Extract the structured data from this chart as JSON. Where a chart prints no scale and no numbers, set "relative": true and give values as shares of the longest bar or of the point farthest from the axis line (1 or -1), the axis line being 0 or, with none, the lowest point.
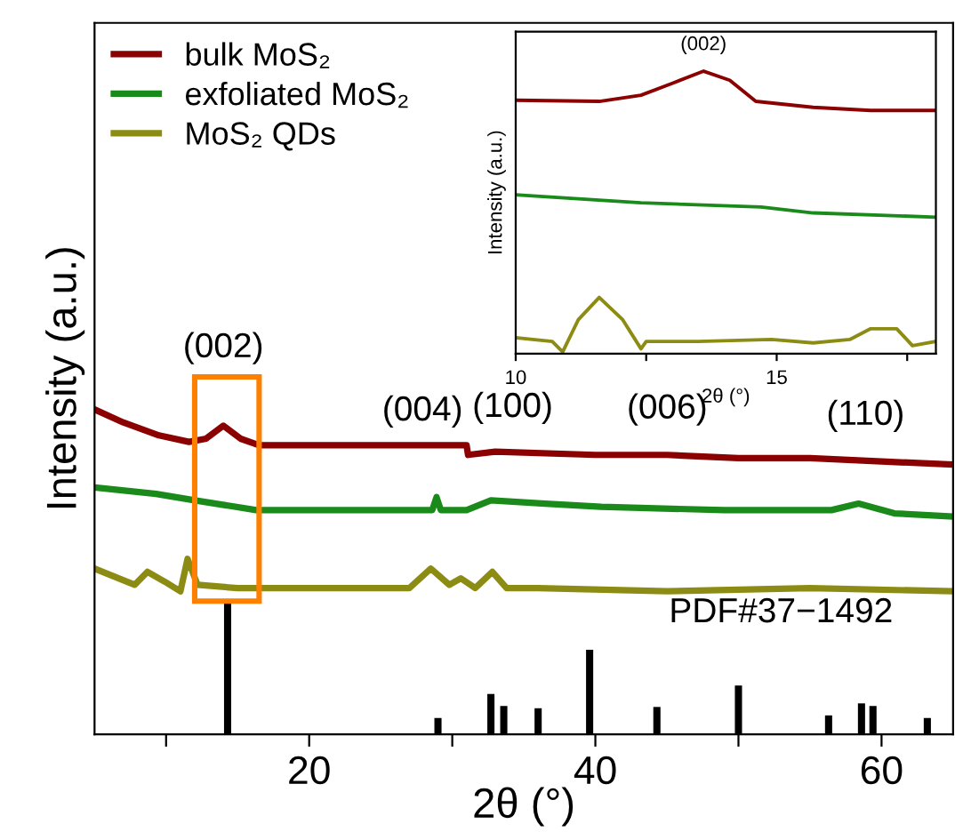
{
  "chart_data": [
    {
      "type": "line",
      "relative": true,
      "xlabel": "2θ (°)",
      "ylabel": "Intensity (a.u.)",
      "xlim": [
        5,
        65
      ],
      "xticks": [
        {
          "value": 10,
          "label": null
        },
        20,
        {
          "value": 30,
          "label": null
        },
        40,
        {
          "value": 50,
          "label": null
        },
        60
      ],
      "legend": "top left",
      "grid": false,
      "tick_labels": "x",
      "series": [
        {
          "name": "bulk MoS₂",
          "color": "#8b0000",
          "x": [
            5,
            7,
            9.5,
            11.6,
            12.8,
            14.0,
            15.2,
            16.5,
            20,
            25,
            31.0,
            31.1,
            33,
            40,
            45,
            50,
            55,
            60,
            65
          ],
          "values": [
            1.0,
            0.96,
            0.92,
            0.9,
            0.91,
            0.95,
            0.91,
            0.89,
            0.89,
            0.89,
            0.89,
            0.86,
            0.87,
            0.86,
            0.86,
            0.85,
            0.85,
            0.84,
            0.83
          ]
        },
        {
          "name": "exfoliated MoS₂",
          "color": "#1a8a1a",
          "x": [
            5,
            9.3,
            12,
            16.3,
            20,
            28.6,
            28.9,
            29.2,
            31,
            32.7,
            36.5,
            40.4,
            49,
            53,
            56.5,
            58.4,
            60.9,
            65
          ],
          "values": [
            0.76,
            0.74,
            0.72,
            0.69,
            0.69,
            0.69,
            0.73,
            0.69,
            0.69,
            0.72,
            0.71,
            0.7,
            0.69,
            0.69,
            0.69,
            0.71,
            0.68,
            0.67
          ]
        },
        {
          "name": "MoS₂ QDs",
          "color": "#8c8c14",
          "x": [
            5,
            7.8,
            8.7,
            9.9,
            11.0,
            11.5,
            12.2,
            15,
            20,
            27,
            28.5,
            29.8,
            30.6,
            31.6,
            32.8,
            33.8,
            36,
            45,
            55,
            65
          ],
          "values": [
            0.51,
            0.46,
            0.5,
            0.47,
            0.44,
            0.54,
            0.46,
            0.45,
            0.45,
            0.45,
            0.51,
            0.46,
            0.48,
            0.45,
            0.5,
            0.45,
            0.45,
            0.44,
            0.45,
            0.44
          ]
        },
        {
          "type": "bar",
          "color": "#000000",
          "x": [
            14.3,
            29.0,
            32.7,
            33.6,
            36.0,
            39.6,
            44.3,
            50.0,
            56.3,
            58.6,
            59.4,
            63.2
          ],
          "values": [
            0.41,
            0.05,
            0.124,
            0.087,
            0.08,
            0.26,
            0.084,
            0.15,
            0.058,
            0.095,
            0.087,
            0.05
          ]
        }
      ],
      "annotations": [
        "(002)",
        "(004)",
        "(100)",
        "(006)",
        "(110)",
        "PDF#37−1492"
      ]
    },
    {
      "type": "line",
      "relative": true,
      "xlabel": "2θ (°)",
      "ylabel": "Intensity (a.u.)",
      "xlim": [
        10,
        18.05
      ],
      "xticks": [
        10,
        {
          "value": 12.5,
          "label": null
        },
        15,
        {
          "value": 17.5,
          "label": null
        }
      ],
      "tick_labels": "x",
      "grid": false,
      "series": [
        {
          "color": "#8b0000",
          "x": [
            10,
            11.6,
            12.4,
            13.0,
            13.6,
            14.1,
            14.6,
            15.7,
            16.8,
            18.05
          ],
          "values": [
            0.897,
            0.893,
            0.915,
            0.957,
            1.0,
            0.968,
            0.893,
            0.872,
            0.861,
            0.861
          ]
        },
        {
          "color": "#1a8a1a",
          "x": [
            10,
            12.4,
            14.7,
            15.7,
            18.05
          ],
          "values": [
            0.562,
            0.534,
            0.519,
            0.498,
            0.483
          ]
        },
        {
          "color": "#8c8c14",
          "x": [
            10,
            10.7,
            10.9,
            11.2,
            11.6,
            12.05,
            12.4,
            12.5,
            13.5,
            14.9,
            15.7,
            16.4,
            16.8,
            17.3,
            17.6,
            18.05
          ],
          "values": [
            0.056,
            0.043,
            0.006,
            0.12,
            0.199,
            0.12,
            0.017,
            0.043,
            0.043,
            0.05,
            0.038,
            0.05,
            0.088,
            0.088,
            0.028,
            0.043
          ]
        }
      ],
      "annotations": [
        "(002)"
      ]
    }
  ]
}
